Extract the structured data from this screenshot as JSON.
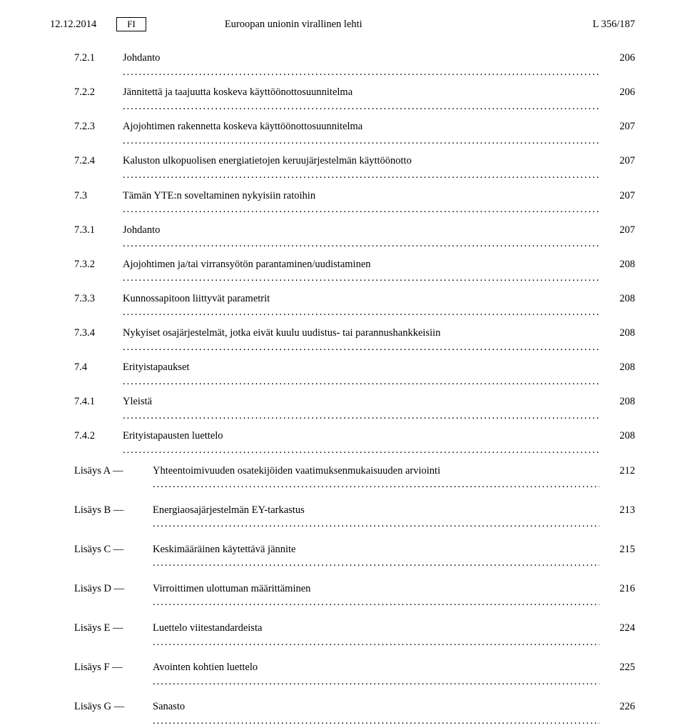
{
  "header": {
    "date": "12.12.2014",
    "lang_box": "FI",
    "journal_title": "Euroopan unionin virallinen lehti",
    "page_ref": "L 356/187"
  },
  "toc": [
    {
      "num": "7.2.1",
      "label": "Johdanto",
      "page": "206"
    },
    {
      "num": "7.2.2",
      "label": "Jännitettä ja taajuutta koskeva käyttöönottosuunnitelma",
      "page": "206"
    },
    {
      "num": "7.2.3",
      "label": "Ajojohtimen rakennetta koskeva käyttöönottosuunnitelma",
      "page": "207"
    },
    {
      "num": "7.2.4",
      "label": "Kaluston ulkopuolisen energiatietojen keruujärjestelmän käyttöönotto",
      "page": "207"
    },
    {
      "num": "7.3",
      "label": "Tämän YTE:n soveltaminen nykyisiin ratoihin",
      "page": "207"
    },
    {
      "num": "7.3.1",
      "label": "Johdanto",
      "page": "207"
    },
    {
      "num": "7.3.2",
      "label": "Ajojohtimen ja/tai virransyötön parantaminen/uudistaminen",
      "page": "208"
    },
    {
      "num": "7.3.3",
      "label": "Kunnossapitoon liittyvät parametrit",
      "page": "208"
    },
    {
      "num": "7.3.4",
      "label": "Nykyiset osajärjestelmät, jotka eivät kuulu uudistus- tai parannushankkeisiin",
      "page": "208"
    },
    {
      "num": "7.4",
      "label": "Erityistapaukset",
      "page": "208"
    },
    {
      "num": "7.4.1",
      "label": "Yleistä",
      "page": "208"
    },
    {
      "num": "7.4.2",
      "label": "Erityistapausten luettelo",
      "page": "208"
    }
  ],
  "appendices": [
    {
      "num": "Lisäys A —",
      "label": "Yhteentoimivuuden osatekijöiden vaatimuksenmukaisuuden arviointi",
      "page": "212"
    },
    {
      "num": "Lisäys B —",
      "label": "Energiaosajärjestelmän EY-tarkastus",
      "page": "213"
    },
    {
      "num": "Lisäys C —",
      "label": "Keskimääräinen käytettävä jännite",
      "page": "215"
    },
    {
      "num": "Lisäys D —",
      "label": "Virroittimen ulottuman määrittäminen",
      "page": "216"
    },
    {
      "num": "Lisäys E —",
      "label": "Luettelo viitestandardeista",
      "page": "224"
    },
    {
      "num": "Lisäys F —",
      "label": "Avointen kohtien luettelo",
      "page": "225"
    },
    {
      "num": "Lisäys G —",
      "label": "Sanasto",
      "page": "226"
    }
  ]
}
